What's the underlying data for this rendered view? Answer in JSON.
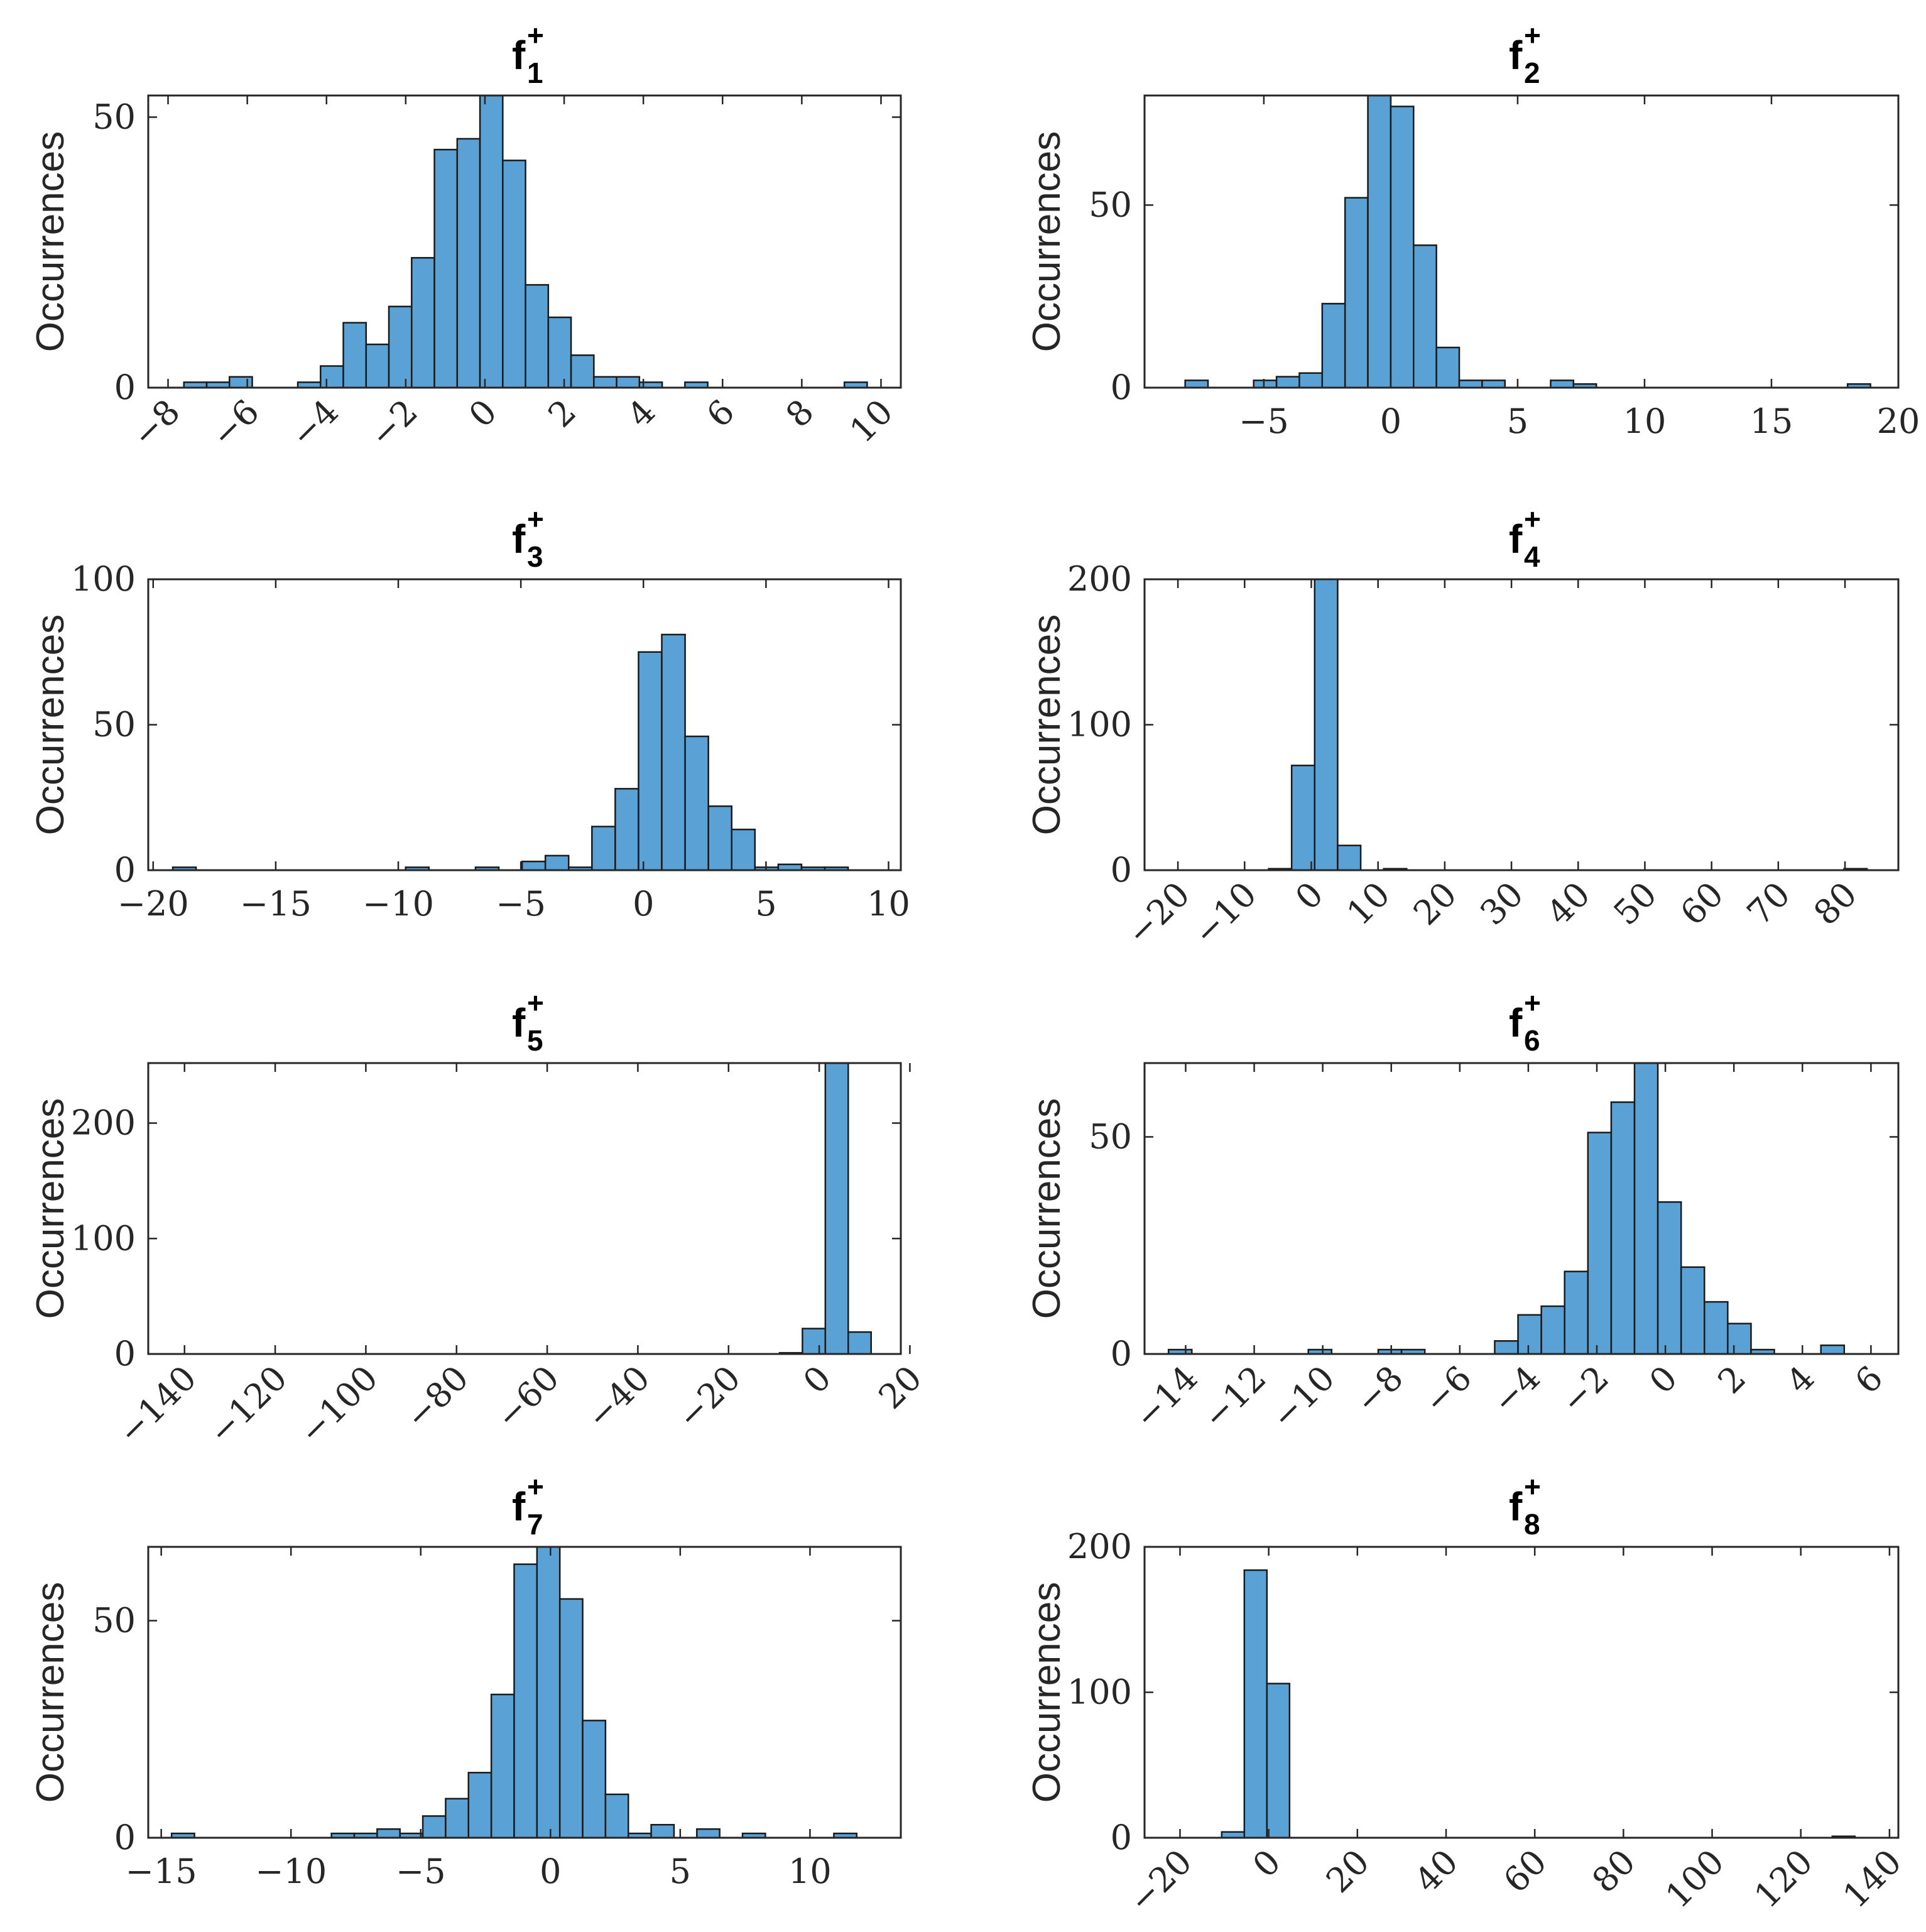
{
  "theme": {
    "bar_color": "#5aa2d6",
    "edge_color": "#1a1a1a",
    "axis_color": "#262626"
  },
  "chart_data": [
    {
      "type": "bar",
      "title": {
        "main": "f",
        "sup": "+",
        "sub": "1"
      },
      "ylabel": "Occurrences",
      "xlabel": "",
      "xlim": [
        -8.5,
        10.5
      ],
      "ylim": [
        0,
        54
      ],
      "xticks": [
        -8,
        -6,
        -4,
        -2,
        0,
        2,
        4,
        6,
        8,
        10
      ],
      "xtick_labels": [
        "−8",
        "−6",
        "−4",
        "−2",
        "0",
        "2",
        "4",
        "6",
        "8",
        "10"
      ],
      "xtick_rotation": -45,
      "yticks": [
        0,
        50
      ],
      "ytick_labels": [
        "0",
        "50"
      ],
      "bin_start": -7.6,
      "bin_width": 0.575,
      "counts": [
        1,
        1,
        2,
        0,
        0,
        1,
        4,
        12,
        8,
        15,
        24,
        44,
        46,
        54,
        42,
        19,
        13,
        6,
        2,
        2,
        1,
        0,
        1,
        0,
        0,
        0,
        0,
        0,
        0,
        1
      ]
    },
    {
      "type": "bar",
      "title": {
        "main": "f",
        "sup": "+",
        "sub": "2"
      },
      "ylabel": "Occurrences",
      "xlabel": "",
      "xlim": [
        -9.7,
        20
      ],
      "ylim": [
        0,
        80
      ],
      "xticks": [
        -5,
        0,
        5,
        10,
        15,
        20
      ],
      "xtick_labels": [
        "−5",
        "0",
        "5",
        "10",
        "15",
        "20"
      ],
      "xtick_rotation": 0,
      "yticks": [
        0,
        50
      ],
      "ytick_labels": [
        "0",
        "50"
      ],
      "bin_start": -8.1,
      "bin_width": 0.9,
      "counts": [
        2,
        0,
        0,
        2,
        3,
        4,
        23,
        52,
        80,
        77,
        39,
        11,
        2,
        2,
        0,
        0,
        2,
        1,
        0,
        0,
        0,
        0,
        0,
        0,
        0,
        0,
        0,
        0,
        0,
        1
      ]
    },
    {
      "type": "bar",
      "title": {
        "main": "f",
        "sup": "+",
        "sub": "3"
      },
      "ylabel": "Occurrences",
      "xlabel": "",
      "xlim": [
        -20.2,
        10.5
      ],
      "ylim": [
        0,
        100
      ],
      "xticks": [
        -20,
        -15,
        -10,
        -5,
        0,
        5,
        10
      ],
      "xtick_labels": [
        "−20",
        "−15",
        "−10",
        "−5",
        "0",
        "5",
        "10"
      ],
      "xtick_rotation": 0,
      "yticks": [
        0,
        50,
        100
      ],
      "ytick_labels": [
        "0",
        "50",
        "100"
      ],
      "bin_start": -19.2,
      "bin_width": 0.95,
      "counts": [
        1,
        0,
        0,
        0,
        0,
        0,
        0,
        0,
        0,
        0,
        1,
        0,
        0,
        1,
        0,
        3,
        5,
        1,
        15,
        28,
        75,
        81,
        46,
        22,
        14,
        1,
        2,
        1,
        1,
        0
      ]
    },
    {
      "type": "bar",
      "title": {
        "main": "f",
        "sup": "+",
        "sub": "4"
      },
      "ylabel": "Occurrences",
      "xlabel": "",
      "xlim": [
        -25,
        88
      ],
      "ylim": [
        0,
        200
      ],
      "xticks": [
        -20,
        -10,
        0,
        10,
        20,
        30,
        40,
        50,
        60,
        70,
        80
      ],
      "xtick_labels": [
        "−20",
        "−10",
        "0",
        "10",
        "20",
        "30",
        "40",
        "50",
        "60",
        "70",
        "80"
      ],
      "xtick_rotation": -45,
      "yticks": [
        0,
        100,
        200
      ],
      "ytick_labels": [
        "0",
        "100",
        "200"
      ],
      "bin_start": -20.2,
      "bin_width": 3.45,
      "counts": [
        0,
        0,
        0,
        0,
        1,
        72,
        205,
        17,
        0,
        1,
        0,
        0,
        0,
        0,
        0,
        0,
        0,
        0,
        0,
        0,
        0,
        0,
        0,
        0,
        0,
        0,
        0,
        0,
        0,
        1
      ]
    },
    {
      "type": "bar",
      "title": {
        "main": "f",
        "sup": "+",
        "sub": "5"
      },
      "ylabel": "Occurrences",
      "xlabel": "",
      "xlim": [
        -148,
        18
      ],
      "ylim": [
        0,
        252
      ],
      "xticks": [
        -140,
        -120,
        -100,
        -80,
        -60,
        -40,
        -20,
        0,
        20
      ],
      "xtick_labels": [
        "−140",
        "−120",
        "−100",
        "−80",
        "−60",
        "−40",
        "−20",
        "0",
        "20"
      ],
      "xtick_rotation": -45,
      "yticks": [
        0,
        100,
        200
      ],
      "ytick_labels": [
        "0",
        "100",
        "200"
      ],
      "bin_start": -135,
      "bin_width": 5.05,
      "counts": [
        0,
        0,
        0,
        0,
        0,
        0,
        0,
        0,
        0,
        0,
        0,
        0,
        0,
        0,
        0,
        0,
        0,
        0,
        0,
        0,
        0,
        0,
        0,
        0,
        0,
        1,
        22,
        252,
        19,
        0
      ]
    },
    {
      "type": "bar",
      "title": {
        "main": "f",
        "sup": "+",
        "sub": "6"
      },
      "ylabel": "Occurrences",
      "xlabel": "",
      "xlim": [
        -15.2,
        6.8
      ],
      "ylim": [
        0,
        67
      ],
      "xticks": [
        -14,
        -12,
        -10,
        -8,
        -6,
        -4,
        -2,
        0,
        2,
        4,
        6
      ],
      "xtick_labels": [
        "−14",
        "−12",
        "−10",
        "−8",
        "−6",
        "−4",
        "−2",
        "0",
        "2",
        "4",
        "6"
      ],
      "xtick_rotation": -45,
      "yticks": [
        0,
        50
      ],
      "ytick_labels": [
        "0",
        "50"
      ],
      "bin_start": -14.5,
      "bin_width": 0.68,
      "counts": [
        1,
        0,
        0,
        0,
        0,
        0,
        1,
        0,
        0,
        1,
        1,
        0,
        0,
        0,
        3,
        9,
        11,
        19,
        51,
        58,
        67,
        35,
        20,
        12,
        7,
        1,
        0,
        0,
        2,
        0
      ]
    },
    {
      "type": "bar",
      "title": {
        "main": "f",
        "sup": "+",
        "sub": "7"
      },
      "ylabel": "Occurrences",
      "xlabel": "",
      "xlim": [
        -15.5,
        13.5
      ],
      "ylim": [
        0,
        67
      ],
      "xticks": [
        -15,
        -10,
        -5,
        0,
        5,
        10
      ],
      "xtick_labels": [
        "−15",
        "−10",
        "−5",
        "0",
        "5",
        "10"
      ],
      "xtick_rotation": 0,
      "yticks": [
        0,
        50
      ],
      "ytick_labels": [
        "0",
        "50"
      ],
      "bin_start": -14.6,
      "bin_width": 0.88,
      "counts": [
        1,
        0,
        0,
        0,
        0,
        0,
        0,
        1,
        1,
        2,
        1,
        5,
        9,
        15,
        33,
        63,
        67,
        55,
        27,
        10,
        1,
        3,
        0,
        2,
        0,
        1,
        0,
        0,
        0,
        1
      ]
    },
    {
      "type": "bar",
      "title": {
        "main": "f",
        "sup": "+",
        "sub": "8"
      },
      "ylabel": "Occurrences",
      "xlabel": "",
      "xlim": [
        -28,
        142
      ],
      "ylim": [
        0,
        200
      ],
      "xticks": [
        -20,
        0,
        20,
        40,
        60,
        80,
        100,
        120,
        140
      ],
      "xtick_labels": [
        "−20",
        "0",
        "20",
        "40",
        "60",
        "80",
        "100",
        "120",
        "140"
      ],
      "xtick_rotation": -45,
      "yticks": [
        0,
        100,
        200
      ],
      "ytick_labels": [
        "0",
        "100",
        "200"
      ],
      "bin_start": -20.8,
      "bin_width": 5.1,
      "counts": [
        0,
        0,
        4,
        184,
        106,
        0,
        0,
        0,
        0,
        0,
        0,
        0,
        0,
        0,
        0,
        0,
        0,
        0,
        0,
        0,
        0,
        0,
        0,
        0,
        0,
        0,
        0,
        0,
        0,
        1
      ]
    }
  ]
}
